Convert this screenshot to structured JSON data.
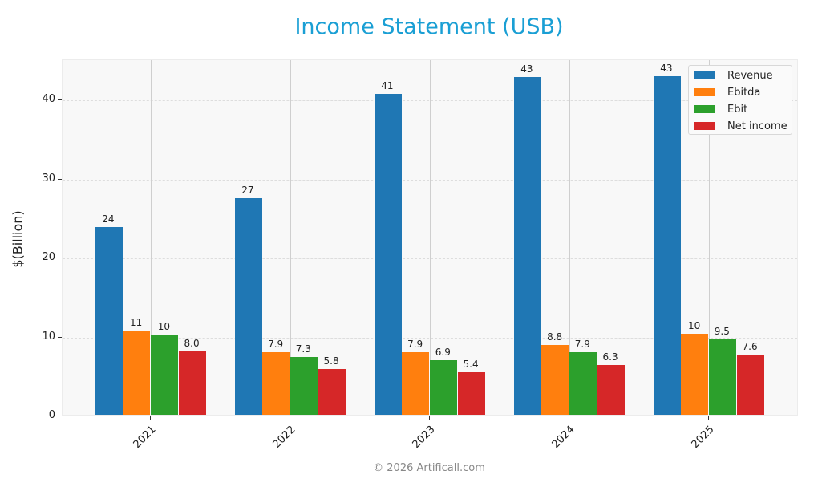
{
  "chart_data": {
    "type": "bar",
    "title": "Income Statement (USB)",
    "xlabel": "",
    "ylabel": "$(Billion)",
    "ylim": [
      0,
      45
    ],
    "yticks": [
      0,
      10,
      20,
      30,
      40
    ],
    "grid": true,
    "legend_position": "upper right",
    "categories": [
      "2021",
      "2022",
      "2023",
      "2024",
      "2025"
    ],
    "series": [
      {
        "name": "Revenue",
        "color": "#1f77b4",
        "values": [
          23.8,
          27.4,
          40.6,
          42.7,
          42.8
        ],
        "labels": [
          "24",
          "27",
          "41",
          "43",
          "43"
        ]
      },
      {
        "name": "Ebitda",
        "color": "#ff7f0e",
        "values": [
          10.7,
          7.9,
          7.9,
          8.8,
          10.3
        ],
        "labels": [
          "11",
          "7.9",
          "7.9",
          "8.8",
          "10"
        ]
      },
      {
        "name": "Ebit",
        "color": "#2ca02c",
        "values": [
          10.2,
          7.3,
          6.9,
          7.9,
          9.5
        ],
        "labels": [
          "10",
          "7.3",
          "6.9",
          "7.9",
          "9.5"
        ]
      },
      {
        "name": "Net income",
        "color": "#d62728",
        "values": [
          8.0,
          5.8,
          5.4,
          6.3,
          7.6
        ],
        "labels": [
          "8.0",
          "5.8",
          "5.4",
          "6.3",
          "7.6"
        ]
      }
    ]
  },
  "footer": "© 2026 Artificall.com"
}
